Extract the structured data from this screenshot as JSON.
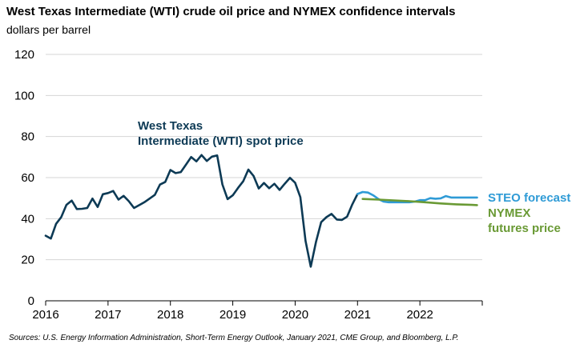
{
  "chart_data": {
    "type": "line",
    "title": "West Texas Intermediate (WTI) crude oil price and NYMEX confidence intervals",
    "subtitle": "dollars per barrel",
    "source": "Sources: U.S. Energy Information Administration, Short-Term Energy Outlook, January 2021, CME Group, and Bloomberg, L.P.",
    "xlabel": "",
    "ylabel": "",
    "xlim": [
      2016,
      2023
    ],
    "ylim": [
      0,
      120
    ],
    "xticks": [
      "2016",
      "2017",
      "2018",
      "2019",
      "2020",
      "2021",
      "2022"
    ],
    "yticks": [
      "0",
      "20",
      "40",
      "60",
      "80",
      "100",
      "120"
    ],
    "grid": "horizontal",
    "series": [
      {
        "name": "West Texas Intermediate (WTI) spot price",
        "label_lines": [
          "West Texas",
          "Intermediate (WTI) spot price"
        ],
        "color": "#0d3a55",
        "x": [
          2016.0,
          2016.083,
          2016.167,
          2016.25,
          2016.333,
          2016.417,
          2016.5,
          2016.583,
          2016.667,
          2016.75,
          2016.833,
          2016.917,
          2017.0,
          2017.083,
          2017.167,
          2017.25,
          2017.333,
          2017.417,
          2017.5,
          2017.583,
          2017.667,
          2017.75,
          2017.833,
          2017.917,
          2018.0,
          2018.083,
          2018.167,
          2018.25,
          2018.333,
          2018.417,
          2018.5,
          2018.583,
          2018.667,
          2018.75,
          2018.833,
          2018.917,
          2019.0,
          2019.083,
          2019.167,
          2019.25,
          2019.333,
          2019.417,
          2019.5,
          2019.583,
          2019.667,
          2019.75,
          2019.833,
          2019.917,
          2020.0,
          2020.083,
          2020.167,
          2020.25,
          2020.333,
          2020.417,
          2020.5,
          2020.583,
          2020.667,
          2020.75,
          2020.833,
          2020.917,
          2021.0
        ],
        "values": [
          31.7,
          30.3,
          37.5,
          40.8,
          46.7,
          48.8,
          44.7,
          44.8,
          45.2,
          49.8,
          45.7,
          51.9,
          52.5,
          53.5,
          49.3,
          51.1,
          48.5,
          45.2,
          46.6,
          48.0,
          49.8,
          51.6,
          56.6,
          57.9,
          63.7,
          62.2,
          62.7,
          66.3,
          70.0,
          67.9,
          71.0,
          68.1,
          70.2,
          70.8,
          56.7,
          49.5,
          51.4,
          54.9,
          58.2,
          63.9,
          60.8,
          54.7,
          57.4,
          54.8,
          57.0,
          54.0,
          57.0,
          59.9,
          57.5,
          50.5,
          29.2,
          16.6,
          28.6,
          38.3,
          40.7,
          42.3,
          39.6,
          39.4,
          41.0,
          47.0,
          52.0
        ]
      },
      {
        "name": "STEO forecast",
        "color": "#2f9bd6",
        "x": [
          2021.0,
          2021.083,
          2021.167,
          2021.25,
          2021.333,
          2021.417,
          2021.5,
          2021.583,
          2021.667,
          2021.75,
          2021.833,
          2021.917,
          2022.0,
          2022.083,
          2022.167,
          2022.25,
          2022.333,
          2022.417,
          2022.5,
          2022.583,
          2022.667,
          2022.75,
          2022.833,
          2022.917
        ],
        "values": [
          52.0,
          53.0,
          52.7,
          51.4,
          49.6,
          48.3,
          48.0,
          48.0,
          48.0,
          48.0,
          48.0,
          48.3,
          49.0,
          49.0,
          50.0,
          49.7,
          49.9,
          51.0,
          50.3,
          50.3,
          50.3,
          50.3,
          50.3,
          50.3
        ]
      },
      {
        "name": "NYMEX futures price",
        "label_lines": [
          "NYMEX",
          "futures price"
        ],
        "color": "#6a9a35",
        "x": [
          2021.083,
          2021.333,
          2021.583,
          2021.833,
          2022.083,
          2022.333,
          2022.583,
          2022.833,
          2022.917
        ],
        "values": [
          49.6,
          49.3,
          48.9,
          48.5,
          48.0,
          47.4,
          47.0,
          46.7,
          46.6
        ]
      }
    ]
  }
}
